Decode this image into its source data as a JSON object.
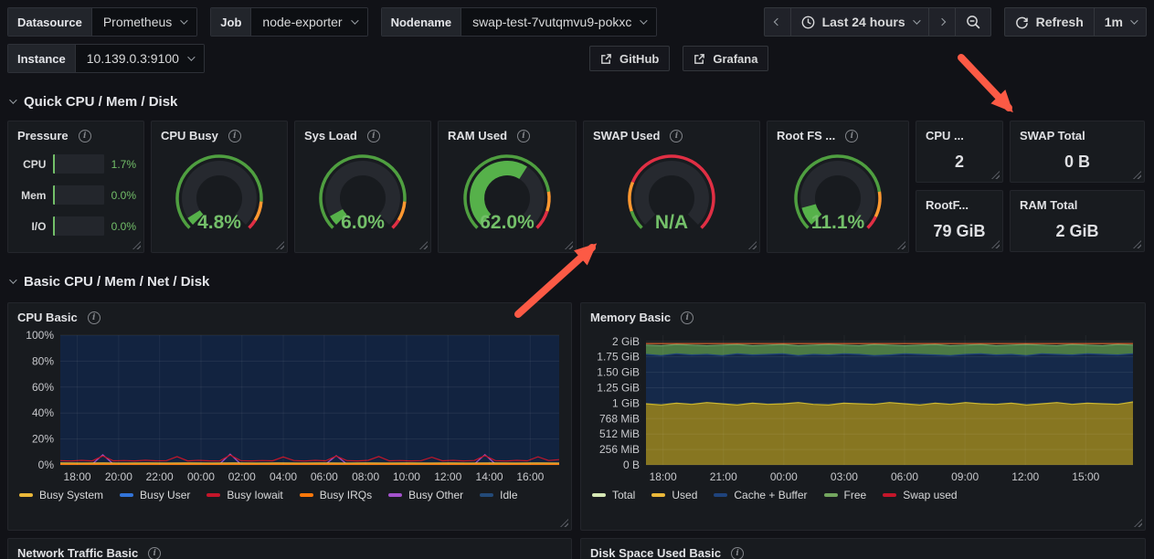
{
  "toolbar": {
    "variables": [
      {
        "label": "Datasource",
        "value": "Prometheus"
      },
      {
        "label": "Job",
        "value": "node-exporter"
      },
      {
        "label": "Nodename",
        "value": "swap-test-7vutqmvu9-pokxc"
      },
      {
        "label": "Instance",
        "value": "10.139.0.3:9100"
      }
    ],
    "links": [
      {
        "label": "GitHub"
      },
      {
        "label": "Grafana"
      }
    ],
    "time_range": "Last 24 hours",
    "refresh_label": "Refresh",
    "refresh_interval": "1m"
  },
  "sections": [
    {
      "title": "Quick CPU / Mem / Disk"
    },
    {
      "title": "Basic CPU / Mem / Net / Disk"
    }
  ],
  "pressure": {
    "title": "Pressure",
    "rows": [
      {
        "label": "CPU",
        "value": "1.7%",
        "frac": 0.017
      },
      {
        "label": "Mem",
        "value": "0.0%",
        "frac": 0.0
      },
      {
        "label": "I/O",
        "value": "0.0%",
        "frac": 0.0
      }
    ]
  },
  "gauges": [
    {
      "title": "CPU Busy",
      "text": "4.8%",
      "fill": 0.048,
      "segments": [
        {
          "color": "#4f9f40",
          "frac": 0.85
        },
        {
          "color": "#ff9830",
          "frac": 0.1
        },
        {
          "color": "#e02f44",
          "frac": 0.05
        }
      ]
    },
    {
      "title": "Sys Load",
      "text": "6.0%",
      "fill": 0.06,
      "segments": [
        {
          "color": "#4f9f40",
          "frac": 0.85
        },
        {
          "color": "#ff9830",
          "frac": 0.1
        },
        {
          "color": "#e02f44",
          "frac": 0.05
        }
      ]
    },
    {
      "title": "RAM Used",
      "text": "62.0%",
      "fill": 0.62,
      "segments": [
        {
          "color": "#4f9f40",
          "frac": 0.8
        },
        {
          "color": "#ff9830",
          "frac": 0.1
        },
        {
          "color": "#e02f44",
          "frac": 0.1
        }
      ]
    },
    {
      "title": "SWAP Used",
      "text": "N/A",
      "fill": 0,
      "segments": [
        {
          "color": "#4f9f40",
          "frac": 0.1
        },
        {
          "color": "#ff9830",
          "frac": 0.15
        },
        {
          "color": "#e02f44",
          "frac": 0.75
        }
      ]
    },
    {
      "title": "Root FS ...",
      "text": "11.1%",
      "fill": 0.111,
      "segments": [
        {
          "color": "#4f9f40",
          "frac": 0.8
        },
        {
          "color": "#ff9830",
          "frac": 0.13
        },
        {
          "color": "#e02f44",
          "frac": 0.07
        }
      ]
    }
  ],
  "stat_cols": [
    [
      {
        "title": "CPU ...",
        "value": "2"
      },
      {
        "title": "RootF...",
        "value": "79 GiB"
      }
    ],
    [
      {
        "title": "SWAP Total",
        "value": "0 B"
      },
      {
        "title": "RAM Total",
        "value": "2 GiB"
      }
    ]
  ],
  "chart_data": [
    {
      "type": "area",
      "title": "CPU Basic",
      "unit": "percent",
      "ylim": [
        0,
        100
      ],
      "y_ticks": [
        {
          "v": 0,
          "label": "0%"
        },
        {
          "v": 20,
          "label": "20%"
        },
        {
          "v": 40,
          "label": "40%"
        },
        {
          "v": 60,
          "label": "60%"
        },
        {
          "v": 80,
          "label": "80%"
        },
        {
          "v": 100,
          "label": "100%"
        }
      ],
      "x_ticks": [
        {
          "f": 0.034,
          "label": "18:00"
        },
        {
          "f": 0.117,
          "label": "20:00"
        },
        {
          "f": 0.199,
          "label": "22:00"
        },
        {
          "f": 0.282,
          "label": "00:00"
        },
        {
          "f": 0.364,
          "label": "02:00"
        },
        {
          "f": 0.447,
          "label": "04:00"
        },
        {
          "f": 0.529,
          "label": "06:00"
        },
        {
          "f": 0.612,
          "label": "08:00"
        },
        {
          "f": 0.694,
          "label": "10:00"
        },
        {
          "f": 0.777,
          "label": "12:00"
        },
        {
          "f": 0.86,
          "label": "14:00"
        },
        {
          "f": 0.942,
          "label": "16:00"
        }
      ],
      "legend": [
        {
          "name": "Busy System",
          "color": "#eab839"
        },
        {
          "name": "Busy User",
          "color": "#3274d9"
        },
        {
          "name": "Busy Iowait",
          "color": "#c4162a"
        },
        {
          "name": "Busy IRQs",
          "color": "#ff780a"
        },
        {
          "name": "Busy Other",
          "color": "#a352cc"
        },
        {
          "name": "Idle",
          "color": "#234a78"
        }
      ],
      "series": [
        {
          "name": "Idle",
          "style": "area",
          "fill": "#122340",
          "stroke": "none",
          "values": [
            100,
            100
          ]
        },
        {
          "name": "Busy Other",
          "style": "line",
          "stroke": "#a352cc",
          "values": [
            0.6,
            0.6,
            0.6,
            0.6,
            7.8,
            0.6,
            0.6,
            0.6,
            0.6,
            0.6,
            0.6,
            0.6,
            0.6,
            0.6,
            0.6,
            0.6,
            8.3,
            0.6,
            0.6,
            0.6,
            0.6,
            0.6,
            0.6,
            0.6,
            0.6,
            0.6,
            7.1,
            0.6,
            0.6,
            0.6,
            0.6,
            0.6,
            0.6,
            0.6,
            0.6,
            0.6,
            0.6,
            0.6,
            0.6,
            0.6,
            7.9,
            0.6,
            0.6,
            0.6,
            0.6,
            0.6,
            0.6,
            0.6
          ]
        },
        {
          "name": "Busy Iowait",
          "style": "line",
          "stroke": "#c4162a",
          "values": [
            3.3,
            3.0,
            3.5,
            3.1,
            6.9,
            3.2,
            3.4,
            3.1,
            3.6,
            3.2,
            3.3,
            6.4,
            3.1,
            3.5,
            3.2,
            3.0,
            7.6,
            3.3,
            3.1,
            3.4,
            3.2,
            6.1,
            3.4,
            3.0,
            3.5,
            3.2,
            6.8,
            3.3,
            3.1,
            3.5,
            6.5,
            3.2,
            3.4,
            3.1,
            3.3,
            5.9,
            3.2,
            3.5,
            3.1,
            3.4,
            7.2,
            3.3,
            3.0,
            3.5,
            3.2,
            6.3,
            3.4,
            4.1
          ]
        },
        {
          "name": "Busy System",
          "style": "area",
          "fill": "#8a7822",
          "stroke": "#eab839",
          "values": [
            1.5,
            1.4,
            1.5,
            1.4,
            1.5,
            1.4,
            1.5,
            1.4,
            1.5,
            1.4,
            1.5,
            1.4,
            1.5,
            1.4,
            1.5,
            1.4,
            1.5,
            1.4,
            1.5,
            1.4,
            1.5,
            1.4,
            1.5,
            1.4
          ]
        },
        {
          "name": "Busy IRQs",
          "style": "line",
          "stroke": "#ff780a",
          "values": [
            0.4,
            0.4
          ]
        }
      ]
    },
    {
      "type": "area",
      "title": "Memory Basic",
      "unit": "bytes",
      "ylim": [
        0,
        2.1
      ],
      "y_ticks": [
        {
          "v": 0,
          "label": "0 B"
        },
        {
          "v": 0.25,
          "label": "256 MiB"
        },
        {
          "v": 0.5,
          "label": "512 MiB"
        },
        {
          "v": 0.75,
          "label": "768 MiB"
        },
        {
          "v": 1,
          "label": "1 GiB"
        },
        {
          "v": 1.25,
          "label": "1.25 GiB"
        },
        {
          "v": 1.5,
          "label": "1.50 GiB"
        },
        {
          "v": 1.75,
          "label": "1.75 GiB"
        },
        {
          "v": 2,
          "label": "2 GiB"
        }
      ],
      "x_ticks": [
        {
          "f": 0.035,
          "label": "18:00"
        },
        {
          "f": 0.159,
          "label": "21:00"
        },
        {
          "f": 0.283,
          "label": "00:00"
        },
        {
          "f": 0.407,
          "label": "03:00"
        },
        {
          "f": 0.531,
          "label": "06:00"
        },
        {
          "f": 0.655,
          "label": "09:00"
        },
        {
          "f": 0.779,
          "label": "12:00"
        },
        {
          "f": 0.903,
          "label": "15:00"
        }
      ],
      "legend": [
        {
          "name": "Total",
          "color": "#d6e8b5"
        },
        {
          "name": "Used",
          "color": "#eab839"
        },
        {
          "name": "Cache + Buffer",
          "color": "#1f437c"
        },
        {
          "name": "Free",
          "color": "#73a65f"
        },
        {
          "name": "Swap used",
          "color": "#c4162a"
        }
      ],
      "series": [
        {
          "name": "Free",
          "style": "area",
          "fill": "#4c7a45",
          "stroke": "#6d9e63",
          "values": [
            1.94,
            1.93,
            1.95,
            1.94,
            1.93,
            1.94,
            1.95,
            1.93,
            1.94,
            1.95,
            1.93,
            1.94,
            1.95,
            1.94,
            1.93,
            1.95,
            1.94,
            1.93,
            1.94,
            1.95,
            1.93,
            1.94,
            1.95,
            1.93,
            1.94,
            1.95,
            1.94,
            1.93,
            1.95,
            1.94,
            1.93,
            1.95,
            1.94
          ]
        },
        {
          "name": "Cache + Buffer",
          "style": "area",
          "fill": "#15294a",
          "stroke": "#1f437c",
          "values": [
            1.79,
            1.77,
            1.8,
            1.78,
            1.79,
            1.77,
            1.8,
            1.78,
            1.79,
            1.8,
            1.77,
            1.79,
            1.78,
            1.8,
            1.79,
            1.77,
            1.78,
            1.8,
            1.79,
            1.78,
            1.77,
            1.79,
            1.8,
            1.78,
            1.79,
            1.77,
            1.8,
            1.79,
            1.78,
            1.8,
            1.79,
            1.78,
            1.8
          ]
        },
        {
          "name": "Used",
          "style": "area",
          "fill": "#877621",
          "stroke": "#c9b428",
          "values": [
            0.99,
            0.97,
            1.0,
            0.98,
            1.01,
            0.99,
            0.97,
            1.0,
            0.98,
            0.99,
            1.01,
            0.98,
            0.97,
            1.0,
            0.99,
            0.98,
            1.01,
            0.99,
            0.97,
            1.0,
            0.98,
            1.01,
            0.99,
            0.98,
            1.0,
            0.97,
            0.99,
            1.01,
            0.98,
            1.0,
            0.99,
            0.98,
            1.02
          ]
        },
        {
          "name": "Total",
          "style": "line",
          "stroke": "#d4622d",
          "values": [
            1.965,
            1.965
          ]
        }
      ]
    }
  ],
  "partial_panels": [
    {
      "title": "Network Traffic Basic"
    },
    {
      "title": "Disk Space Used Basic"
    }
  ],
  "colors": {
    "value_green": "#73bf69",
    "gauge_fill_green": "#56b14a",
    "warning_orange": "#ff9830",
    "critical_red": "#e02f44",
    "annotation_red": "#fc5a45"
  }
}
